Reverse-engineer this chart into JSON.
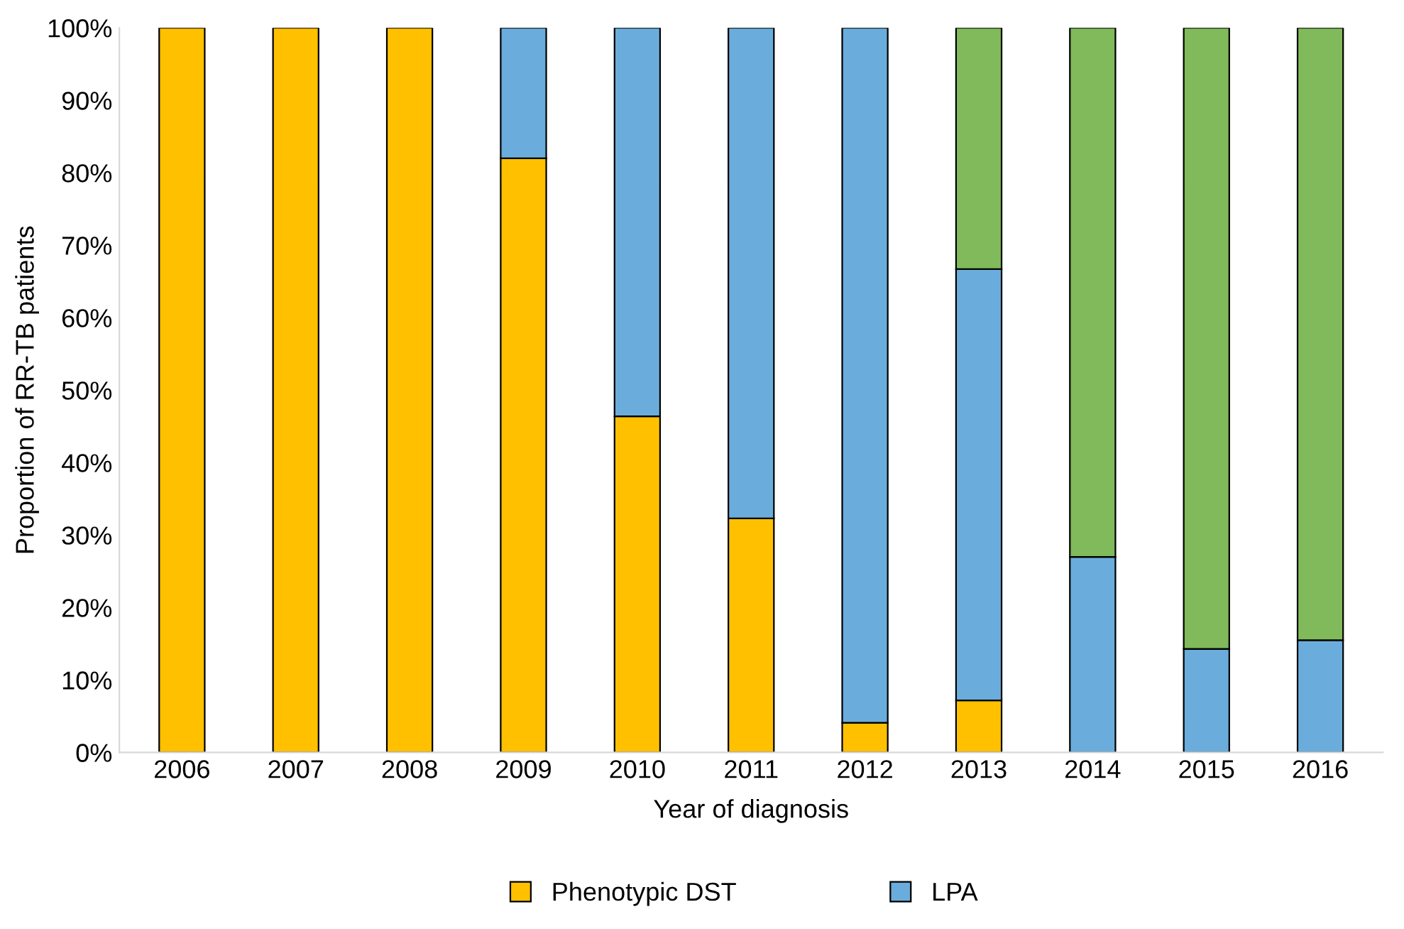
{
  "chart_data": {
    "type": "bar",
    "stacked": true,
    "xlabel": "Year of diagnosis",
    "ylabel": "Proportion of RR-TB patients",
    "categories": [
      "2006",
      "2007",
      "2008",
      "2009",
      "2010",
      "2011",
      "2012",
      "2013",
      "2014",
      "2015",
      "2016"
    ],
    "series": [
      {
        "name": "Phenotypic DST",
        "color": "#ffc000",
        "values": [
          100,
          100,
          100,
          82.0,
          46.4,
          32.3,
          4.1,
          7.2,
          null,
          null,
          null
        ]
      },
      {
        "name": "LPA",
        "color": "#6aaddc",
        "values": [
          null,
          null,
          null,
          18.0,
          53.6,
          67.7,
          95.9,
          59.5,
          27.0,
          14.3,
          15.5
        ]
      },
      {
        "color": "#80ba5a",
        "values": [
          null,
          null,
          null,
          null,
          null,
          null,
          null,
          33.3,
          73.0,
          85.7,
          84.5
        ]
      }
    ],
    "ylim": [
      0,
      100
    ],
    "yticks": [
      {
        "value": 0,
        "label": "0%"
      },
      {
        "value": 10,
        "label": "10%"
      },
      {
        "value": 20,
        "label": "20%"
      },
      {
        "value": 30,
        "label": "30%"
      },
      {
        "value": 40,
        "label": "40%"
      },
      {
        "value": 50,
        "label": "50%"
      },
      {
        "value": 60,
        "label": "60%"
      },
      {
        "value": 70,
        "label": "70%"
      },
      {
        "value": 80,
        "label": "80%"
      },
      {
        "value": 90,
        "label": "90%"
      },
      {
        "value": 100,
        "label": "100%"
      }
    ],
    "grid": false,
    "legend": "bottom"
  }
}
